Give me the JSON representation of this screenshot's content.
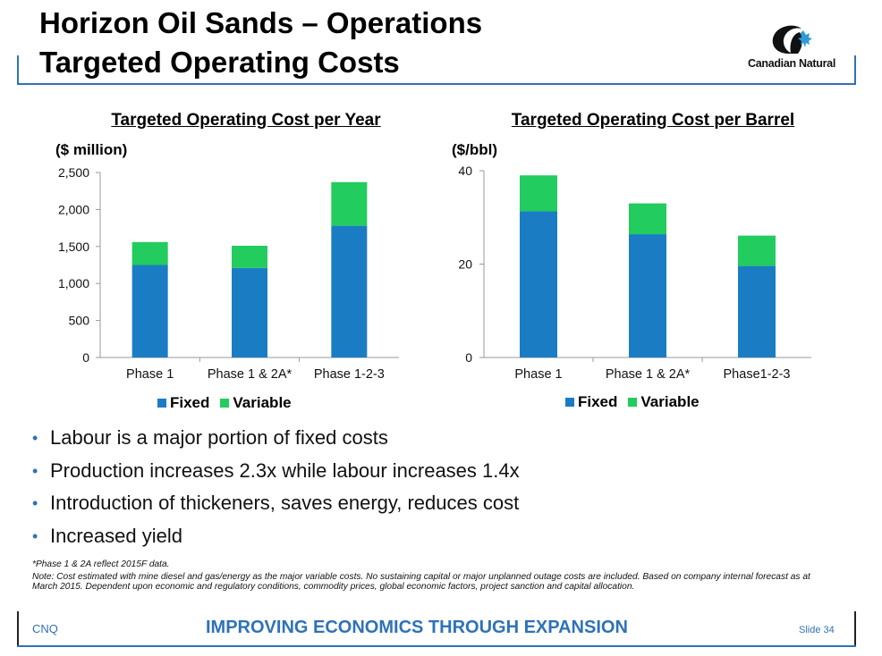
{
  "header": {
    "title_line1": "Horizon Oil Sands – Operations",
    "title_line2": "Targeted Operating Costs",
    "logo_text": "Canadian Natural"
  },
  "colors": {
    "fixed": "#1a7dc4",
    "variable": "#22cc5e",
    "accent": "#2e72b8"
  },
  "chart_data": [
    {
      "type": "bar",
      "stacked": true,
      "title": "Targeted Operating Cost per Year",
      "ylabel": "($ million)",
      "categories": [
        "Phase 1",
        "Phase 1 & 2A*",
        "Phase 1-2-3"
      ],
      "series": [
        {
          "name": "Fixed",
          "values": [
            1250,
            1210,
            1780
          ]
        },
        {
          "name": "Variable",
          "values": [
            310,
            300,
            590
          ]
        }
      ],
      "ylim": [
        0,
        2500
      ],
      "yticks": [
        0,
        500,
        1000,
        1500,
        2000,
        2500
      ],
      "ytick_labels": [
        "0",
        "500",
        "1,000",
        "1,500",
        "2,000",
        "2,500"
      ],
      "grid": false,
      "legend_position": "bottom"
    },
    {
      "type": "bar",
      "stacked": true,
      "title": "Targeted Operating Cost per Barrel",
      "ylabel": "($/bbl)",
      "categories": [
        "Phase 1",
        "Phase 1 & 2A*",
        "Phase1-2-3"
      ],
      "series": [
        {
          "name": "Fixed",
          "values": [
            31.3,
            26.4,
            19.6
          ]
        },
        {
          "name": "Variable",
          "values": [
            7.7,
            6.6,
            6.5
          ]
        }
      ],
      "ylim": [
        0,
        40
      ],
      "yticks": [
        0,
        20,
        40
      ],
      "ytick_labels": [
        "0",
        "20",
        "40"
      ],
      "grid": false,
      "legend_position": "bottom"
    }
  ],
  "bullets": [
    "Labour is a major portion of fixed costs",
    "Production increases 2.3x while labour increases 1.4x",
    "Introduction of thickeners, saves energy, reduces cost",
    "Increased yield"
  ],
  "notes": {
    "line1": "*Phase 1 & 2A reflect 2015F data.",
    "line2": "Note: Cost estimated with mine diesel and gas/energy as the major variable costs. No sustaining capital or major unplanned outage costs are included. Based on company internal forecast as at March 2015. Dependent upon economic and regulatory conditions, commodity prices, global economic factors, project sanction and capital allocation."
  },
  "footer": {
    "left": "CNQ",
    "center": "IMPROVING ECONOMICS THROUGH EXPANSION",
    "right": "Slide 34"
  }
}
